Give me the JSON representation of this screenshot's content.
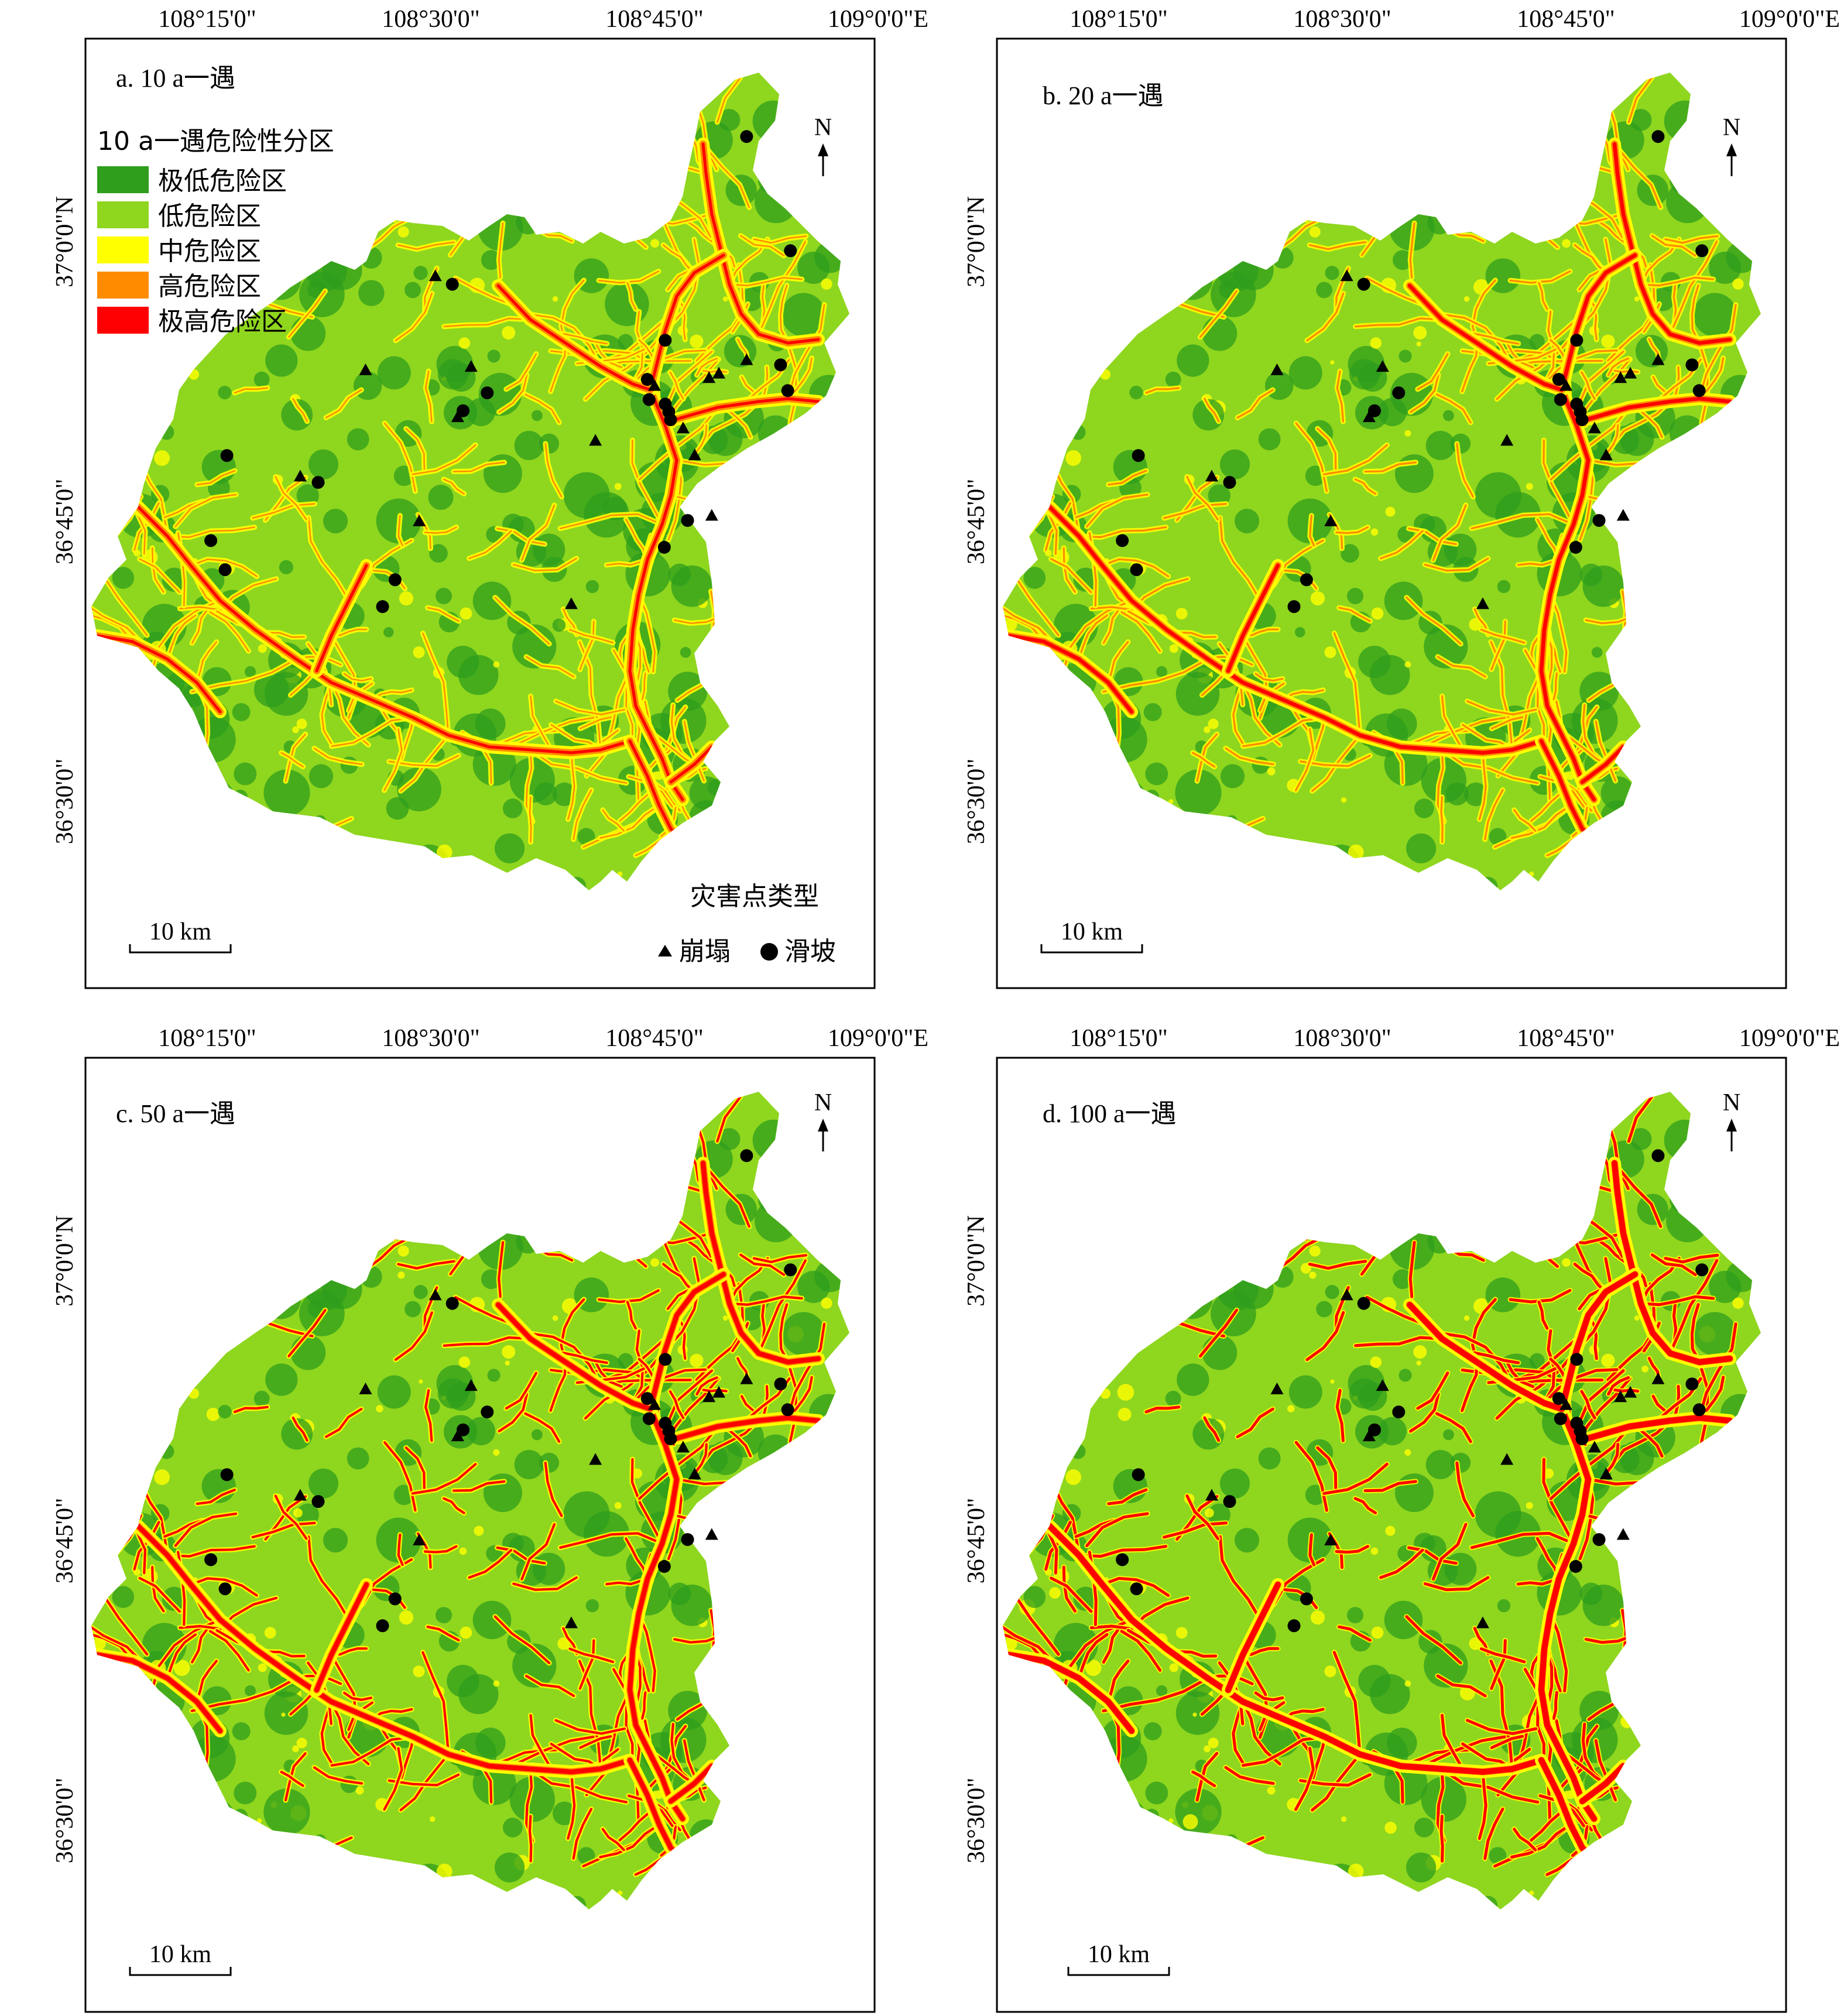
{
  "axis": {
    "lon_ticks": [
      "108°15'0\"",
      "108°30'0\"",
      "108°45'0\"",
      "109°0'0\"E"
    ],
    "lat_ticks": [
      "37°0'0\"N",
      "36°45'0\"",
      "36°30'0\""
    ]
  },
  "panels": [
    {
      "id": "a",
      "label": "a. 10 a一遇",
      "intensity": 0.0
    },
    {
      "id": "b",
      "label": "b. 20 a一遇",
      "intensity": 0.33
    },
    {
      "id": "c",
      "label": "c. 50 a一遇",
      "intensity": 0.66
    },
    {
      "id": "d",
      "label": "d. 100 a一遇",
      "intensity": 1.0
    }
  ],
  "legend": {
    "title": "10 a一遇危险性分区",
    "classes": [
      {
        "label": "极低危险区",
        "color": "#2e9e1c"
      },
      {
        "label": "低危险区",
        "color": "#8fd61f"
      },
      {
        "label": "中危险区",
        "color": "#ffff00"
      },
      {
        "label": "高危险区",
        "color": "#ff8c00"
      },
      {
        "label": "极高危险区",
        "color": "#ff0000"
      }
    ]
  },
  "hazard_legend": {
    "title": "灾害点类型",
    "items": [
      {
        "symbol": "triangle",
        "label": "崩塌"
      },
      {
        "symbol": "circle",
        "label": "滑坡"
      }
    ]
  },
  "north_arrow": "N",
  "scale_bar": "10 km",
  "hazard_points": [
    {
      "type": "landslide",
      "lon": 108.853,
      "lat": 37.094
    },
    {
      "type": "landslide",
      "lon": 108.902,
      "lat": 36.992
    },
    {
      "type": "collapse",
      "lon": 108.505,
      "lat": 36.969
    },
    {
      "type": "landslide",
      "lon": 108.524,
      "lat": 36.962
    },
    {
      "type": "landslide",
      "lon": 108.762,
      "lat": 36.912
    },
    {
      "type": "collapse",
      "lon": 108.853,
      "lat": 36.894
    },
    {
      "type": "landslide",
      "lon": 108.891,
      "lat": 36.89
    },
    {
      "type": "collapse",
      "lon": 108.811,
      "lat": 36.878
    },
    {
      "type": "collapse",
      "lon": 108.822,
      "lat": 36.882
    },
    {
      "type": "landslide",
      "lon": 108.899,
      "lat": 36.867
    },
    {
      "type": "collapse",
      "lon": 108.427,
      "lat": 36.885
    },
    {
      "type": "collapse",
      "lon": 108.545,
      "lat": 36.888
    },
    {
      "type": "landslide",
      "lon": 108.742,
      "lat": 36.877
    },
    {
      "type": "collapse",
      "lon": 108.75,
      "lat": 36.871
    },
    {
      "type": "landslide",
      "lon": 108.563,
      "lat": 36.865
    },
    {
      "type": "landslide",
      "lon": 108.744,
      "lat": 36.859
    },
    {
      "type": "landslide",
      "lon": 108.762,
      "lat": 36.855
    },
    {
      "type": "landslide",
      "lon": 108.766,
      "lat": 36.848
    },
    {
      "type": "landslide",
      "lon": 108.768,
      "lat": 36.841
    },
    {
      "type": "landslide",
      "lon": 108.536,
      "lat": 36.849
    },
    {
      "type": "collapse",
      "lon": 108.53,
      "lat": 36.843
    },
    {
      "type": "collapse",
      "lon": 108.782,
      "lat": 36.833
    },
    {
      "type": "collapse",
      "lon": 108.795,
      "lat": 36.809
    },
    {
      "type": "collapse",
      "lon": 108.684,
      "lat": 36.822
    },
    {
      "type": "landslide",
      "lon": 108.272,
      "lat": 36.809
    },
    {
      "type": "collapse",
      "lon": 108.354,
      "lat": 36.79
    },
    {
      "type": "landslide",
      "lon": 108.374,
      "lat": 36.785
    },
    {
      "type": "collapse",
      "lon": 108.487,
      "lat": 36.75
    },
    {
      "type": "landslide",
      "lon": 108.787,
      "lat": 36.751
    },
    {
      "type": "collapse",
      "lon": 108.814,
      "lat": 36.755
    },
    {
      "type": "landslide",
      "lon": 108.761,
      "lat": 36.727
    },
    {
      "type": "landslide",
      "lon": 108.254,
      "lat": 36.733
    },
    {
      "type": "landslide",
      "lon": 108.27,
      "lat": 36.707
    },
    {
      "type": "landslide",
      "lon": 108.46,
      "lat": 36.698
    },
    {
      "type": "collapse",
      "lon": 108.657,
      "lat": 36.676
    },
    {
      "type": "landslide",
      "lon": 108.446,
      "lat": 36.674
    }
  ]
}
